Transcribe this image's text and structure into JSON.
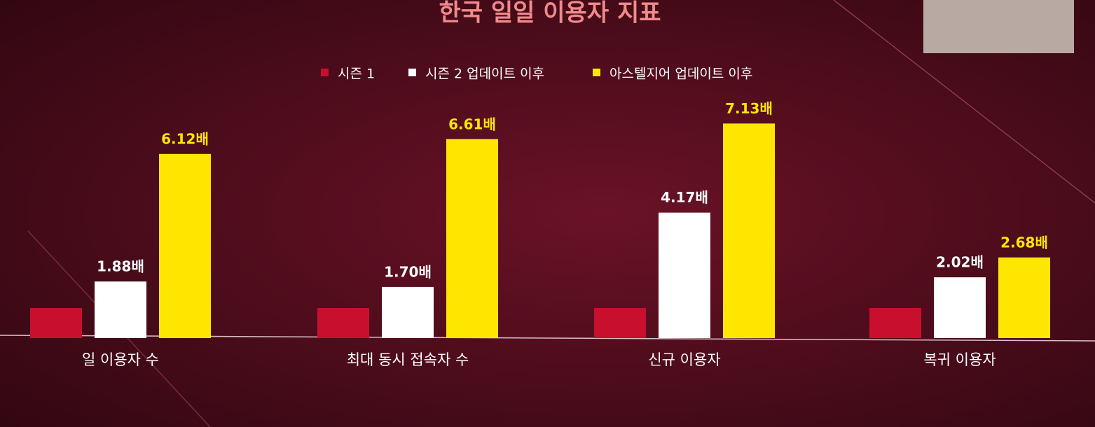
{
  "chart_data": {
    "type": "bar",
    "title": "한국 일일 이용자 지표",
    "categories": [
      "일 이용자 수",
      "최대 동시 접속자 수",
      "신규 이용자",
      "복귀 이용자"
    ],
    "series": [
      {
        "name": "시즌 1",
        "color": "#c8102e",
        "values": [
          1,
          1,
          1,
          1
        ]
      },
      {
        "name": "시즌 2 업데이트 이후",
        "color": "#ffffff",
        "values": [
          1.88,
          1.7,
          4.17,
          2.02
        ],
        "value_labels": [
          "1.88배",
          "1.70배",
          "4.17배",
          "2.02배"
        ]
      },
      {
        "name": "아스텔지어 업데이트 이후",
        "color": "#ffe600",
        "values": [
          6.12,
          6.61,
          7.13,
          2.68
        ],
        "value_labels": [
          "6.12배",
          "6.61배",
          "7.13배",
          "2.68배"
        ]
      }
    ]
  }
}
